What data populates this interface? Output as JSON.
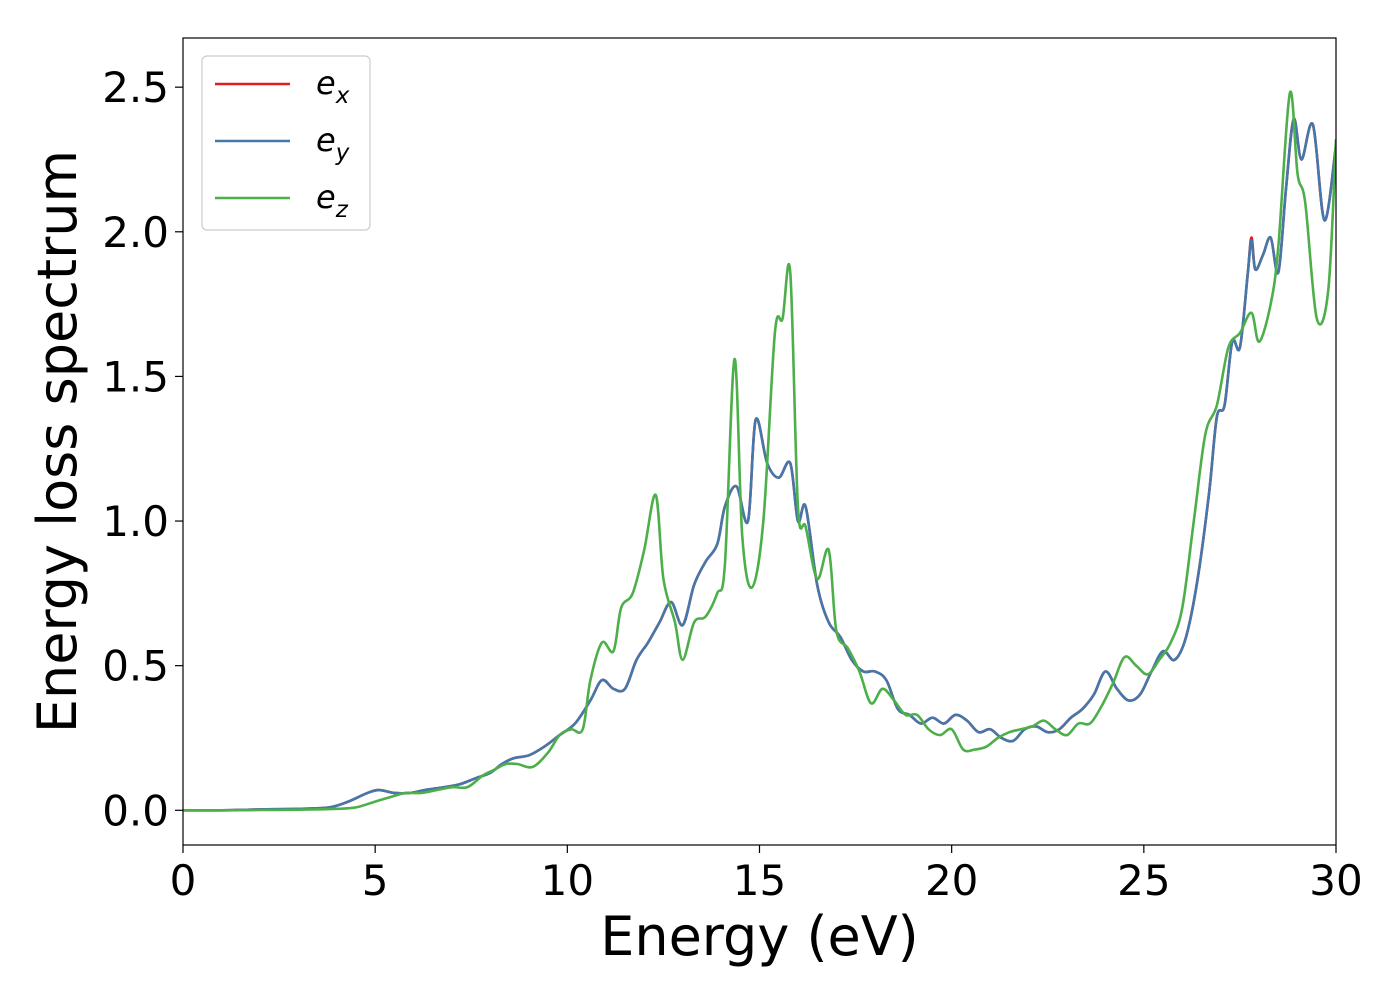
{
  "chart_data": {
    "type": "line",
    "xlabel": "Energy (eV)",
    "ylabel": "Energy loss spectrum",
    "xlim": [
      0,
      30
    ],
    "ylim": [
      -0.12,
      2.67
    ],
    "xticks": [
      0,
      5,
      10,
      15,
      20,
      25,
      30
    ],
    "xtick_labels": [
      "0",
      "5",
      "10",
      "15",
      "20",
      "25",
      "30"
    ],
    "yticks": [
      0.0,
      0.5,
      1.0,
      1.5,
      2.0,
      2.5
    ],
    "ytick_labels": [
      "0.0",
      "0.5",
      "1.0",
      "1.5",
      "2.0",
      "2.5"
    ],
    "grid": false,
    "legend_position": "top-left",
    "series": [
      {
        "name": "e",
        "subscript": "x",
        "color": "#e41a1c",
        "x": [
          0,
          1,
          2,
          3,
          3.8,
          4.3,
          4.8,
          5.1,
          5.5,
          5.9,
          6.3,
          6.8,
          7.2,
          7.6,
          8.0,
          8.3,
          8.6,
          9.0,
          9.4,
          9.8,
          10.2,
          10.6,
          10.9,
          11.2,
          11.5,
          11.8,
          12.1,
          12.4,
          12.7,
          13.0,
          13.3,
          13.6,
          13.9,
          14.1,
          14.4,
          14.7,
          14.9,
          15.2,
          15.5,
          15.8,
          16.0,
          16.2,
          16.5,
          16.8,
          17.1,
          17.4,
          17.7,
          18.0,
          18.3,
          18.6,
          18.9,
          19.2,
          19.5,
          19.8,
          20.1,
          20.4,
          20.7,
          21.0,
          21.3,
          21.6,
          21.9,
          22.2,
          22.5,
          22.8,
          23.1,
          23.4,
          23.7,
          24.0,
          24.3,
          24.6,
          24.9,
          25.2,
          25.5,
          25.8,
          26.1,
          26.4,
          26.7,
          26.9,
          27.1,
          27.3,
          27.5,
          27.7,
          27.8,
          27.9,
          28.1,
          28.3,
          28.5,
          28.7,
          28.9,
          29.1,
          29.4,
          29.7,
          30.0
        ],
        "y": [
          0,
          0,
          0.003,
          0.005,
          0.01,
          0.03,
          0.06,
          0.07,
          0.06,
          0.06,
          0.07,
          0.08,
          0.09,
          0.11,
          0.13,
          0.16,
          0.18,
          0.19,
          0.22,
          0.26,
          0.3,
          0.38,
          0.45,
          0.42,
          0.42,
          0.52,
          0.58,
          0.65,
          0.72,
          0.64,
          0.78,
          0.86,
          0.92,
          1.05,
          1.12,
          1.0,
          1.35,
          1.2,
          1.15,
          1.2,
          1.0,
          1.05,
          0.78,
          0.65,
          0.6,
          0.52,
          0.48,
          0.48,
          0.45,
          0.35,
          0.33,
          0.3,
          0.32,
          0.3,
          0.33,
          0.31,
          0.27,
          0.28,
          0.25,
          0.24,
          0.28,
          0.29,
          0.27,
          0.28,
          0.32,
          0.35,
          0.4,
          0.48,
          0.42,
          0.38,
          0.4,
          0.48,
          0.55,
          0.52,
          0.6,
          0.8,
          1.1,
          1.36,
          1.4,
          1.62,
          1.6,
          1.85,
          1.98,
          1.87,
          1.92,
          1.98,
          1.86,
          2.15,
          2.39,
          2.25,
          2.37,
          2.04,
          2.3
        ]
      },
      {
        "name": "e",
        "subscript": "y",
        "color": "#4477aa",
        "x": [
          0,
          1,
          2,
          3,
          3.8,
          4.3,
          4.8,
          5.1,
          5.5,
          5.9,
          6.3,
          6.8,
          7.2,
          7.6,
          8.0,
          8.3,
          8.6,
          9.0,
          9.4,
          9.8,
          10.2,
          10.6,
          10.9,
          11.2,
          11.5,
          11.8,
          12.1,
          12.4,
          12.7,
          13.0,
          13.3,
          13.6,
          13.9,
          14.1,
          14.4,
          14.7,
          14.9,
          15.2,
          15.5,
          15.8,
          16.0,
          16.2,
          16.5,
          16.8,
          17.1,
          17.4,
          17.7,
          18.0,
          18.3,
          18.6,
          18.9,
          19.2,
          19.5,
          19.8,
          20.1,
          20.4,
          20.7,
          21.0,
          21.3,
          21.6,
          21.9,
          22.2,
          22.5,
          22.8,
          23.1,
          23.4,
          23.7,
          24.0,
          24.3,
          24.6,
          24.9,
          25.2,
          25.5,
          25.8,
          26.1,
          26.4,
          26.7,
          26.9,
          27.1,
          27.3,
          27.5,
          27.7,
          27.8,
          27.9,
          28.1,
          28.3,
          28.5,
          28.7,
          28.9,
          29.1,
          29.4,
          29.7,
          30.0
        ],
        "y": [
          0,
          0,
          0.003,
          0.005,
          0.01,
          0.03,
          0.06,
          0.07,
          0.06,
          0.06,
          0.07,
          0.08,
          0.09,
          0.11,
          0.13,
          0.16,
          0.18,
          0.19,
          0.22,
          0.26,
          0.3,
          0.38,
          0.45,
          0.42,
          0.42,
          0.52,
          0.58,
          0.65,
          0.72,
          0.64,
          0.78,
          0.86,
          0.92,
          1.05,
          1.12,
          1.0,
          1.35,
          1.2,
          1.15,
          1.2,
          1.0,
          1.05,
          0.78,
          0.65,
          0.6,
          0.52,
          0.48,
          0.48,
          0.45,
          0.35,
          0.33,
          0.3,
          0.32,
          0.3,
          0.33,
          0.31,
          0.27,
          0.28,
          0.25,
          0.24,
          0.28,
          0.29,
          0.27,
          0.28,
          0.32,
          0.35,
          0.4,
          0.48,
          0.42,
          0.38,
          0.4,
          0.48,
          0.55,
          0.52,
          0.6,
          0.8,
          1.1,
          1.36,
          1.4,
          1.62,
          1.6,
          1.85,
          1.97,
          1.87,
          1.92,
          1.98,
          1.86,
          2.15,
          2.39,
          2.25,
          2.37,
          2.04,
          2.3
        ]
      },
      {
        "name": "e",
        "subscript": "z",
        "color": "#4daf4a",
        "x": [
          0,
          1,
          2,
          3,
          4.0,
          4.5,
          5.0,
          5.5,
          5.8,
          6.2,
          6.6,
          7.0,
          7.4,
          7.8,
          8.1,
          8.4,
          8.7,
          9.1,
          9.5,
          9.8,
          10.1,
          10.4,
          10.6,
          10.9,
          11.2,
          11.4,
          11.7,
          12.0,
          12.3,
          12.5,
          12.8,
          13.0,
          13.3,
          13.6,
          13.9,
          14.1,
          14.35,
          14.55,
          14.8,
          15.1,
          15.4,
          15.6,
          15.8,
          16.0,
          16.2,
          16.5,
          16.8,
          17.0,
          17.3,
          17.6,
          17.9,
          18.2,
          18.5,
          18.8,
          19.1,
          19.4,
          19.7,
          20.0,
          20.3,
          20.6,
          20.9,
          21.2,
          21.5,
          21.8,
          22.1,
          22.4,
          22.7,
          23.0,
          23.3,
          23.6,
          23.9,
          24.2,
          24.5,
          24.8,
          25.1,
          25.4,
          25.7,
          26.0,
          26.3,
          26.6,
          26.9,
          27.2,
          27.5,
          27.8,
          28.0,
          28.3,
          28.5,
          28.8,
          29.0,
          29.2,
          29.5,
          29.8,
          30.0
        ],
        "y": [
          0,
          0,
          0.001,
          0.002,
          0.005,
          0.01,
          0.03,
          0.05,
          0.06,
          0.06,
          0.07,
          0.08,
          0.08,
          0.12,
          0.14,
          0.16,
          0.16,
          0.15,
          0.2,
          0.26,
          0.28,
          0.28,
          0.45,
          0.58,
          0.55,
          0.7,
          0.75,
          0.9,
          1.09,
          0.8,
          0.65,
          0.52,
          0.65,
          0.67,
          0.75,
          0.85,
          1.56,
          0.95,
          0.77,
          1.0,
          1.65,
          1.7,
          1.86,
          1.05,
          0.98,
          0.8,
          0.9,
          0.62,
          0.56,
          0.48,
          0.37,
          0.42,
          0.38,
          0.33,
          0.33,
          0.28,
          0.26,
          0.28,
          0.21,
          0.21,
          0.22,
          0.25,
          0.27,
          0.28,
          0.29,
          0.31,
          0.28,
          0.26,
          0.3,
          0.3,
          0.36,
          0.44,
          0.53,
          0.5,
          0.47,
          0.52,
          0.58,
          0.7,
          1.0,
          1.3,
          1.4,
          1.6,
          1.65,
          1.72,
          1.62,
          1.75,
          1.95,
          2.48,
          2.2,
          2.1,
          1.7,
          1.8,
          2.32
        ]
      }
    ]
  }
}
